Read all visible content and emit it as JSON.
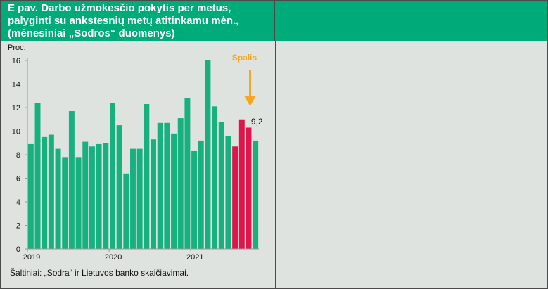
{
  "title": "E pav. Darbo užmokesčio pokytis per metus, palyginti su ankstesnių metų atitinkamu mėn., (mėnesiniai „Sodros“  duomenys)",
  "source": "Šaltiniai: „Sodra“ ir Lietuvos banko skaičiavimai.",
  "colors": {
    "header": "#00ab7a",
    "bar": "#17b07f",
    "highlight": "#e0154c",
    "arrow": "#f5a623",
    "background": "#dfe3df"
  },
  "chart_data": {
    "type": "bar",
    "ylabel": "Proc.",
    "ylim": [
      0,
      16
    ],
    "yticks": [
      "0",
      "2",
      "4",
      "6",
      "8",
      "10",
      "12",
      "14",
      "16"
    ],
    "xtick_labels": [
      "2019",
      "2020",
      "2021"
    ],
    "grid": false,
    "values": [
      8.9,
      12.4,
      9.5,
      9.7,
      8.5,
      7.8,
      11.7,
      7.8,
      9.1,
      8.7,
      8.9,
      9.0,
      12.4,
      10.5,
      6.4,
      8.5,
      8.5,
      12.3,
      9.3,
      10.7,
      10.7,
      9.8,
      11.1,
      12.8,
      8.3,
      9.2,
      16.0,
      12.1,
      10.8,
      9.6,
      8.7,
      11.0,
      10.3,
      9.2
    ],
    "highlight_indices": [
      30,
      31,
      32
    ],
    "annotation_label": "9,2",
    "arrow_label": "Spalis"
  }
}
